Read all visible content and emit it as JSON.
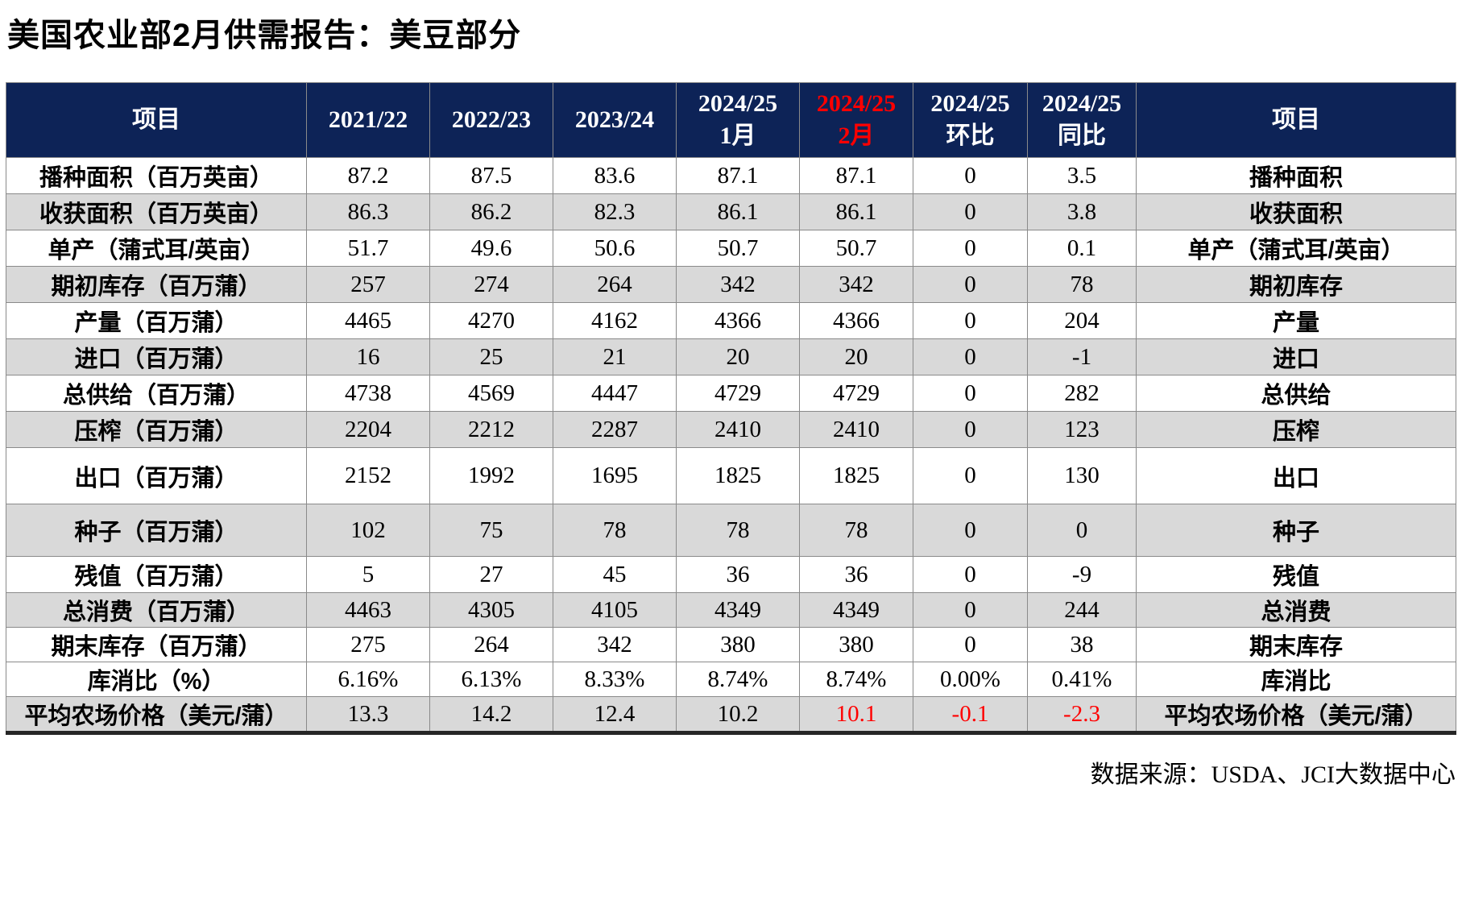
{
  "title": "美国农业部2月供需报告：美豆部分",
  "source_note": "数据来源：USDA、JCI大数据中心",
  "colors": {
    "header_bg": "#0D2357",
    "header_text": "#FFFFFF",
    "highlight_red": "#FF0000",
    "row_alt_bg": "#D9D9D9",
    "grid": "#8A8A8A"
  },
  "chart_data": {
    "type": "table",
    "title": "美国农业部2月供需报告：美豆部分",
    "source": "数据来源：USDA、JCI大数据中心",
    "columns": [
      {
        "label": "项目",
        "red": false
      },
      {
        "label": "2021/22",
        "red": false
      },
      {
        "label": "2022/23",
        "red": false
      },
      {
        "label": "2023/24",
        "red": false
      },
      {
        "label": "2024/25\n1月",
        "red": false
      },
      {
        "label": "2024/25\n2月",
        "red": true
      },
      {
        "label": "2024/25\n环比",
        "red": false
      },
      {
        "label": "2024/25\n同比",
        "red": false
      },
      {
        "label": "项目",
        "red": false
      }
    ],
    "rows": [
      {
        "item": "播种面积（百万英亩）",
        "values": [
          "87.2",
          "87.5",
          "83.6",
          "87.1",
          "87.1",
          "0",
          "3.5"
        ],
        "item_right": "播种面积",
        "shaded": false,
        "height": "std",
        "red_value_indices": []
      },
      {
        "item": "收获面积（百万英亩）",
        "values": [
          "86.3",
          "86.2",
          "82.3",
          "86.1",
          "86.1",
          "0",
          "3.8"
        ],
        "item_right": "收获面积",
        "shaded": true,
        "height": "std",
        "red_value_indices": []
      },
      {
        "item": "单产（蒲式耳/英亩）",
        "values": [
          "51.7",
          "49.6",
          "50.6",
          "50.7",
          "50.7",
          "0",
          "0.1"
        ],
        "item_right": "单产（蒲式耳/英亩）",
        "shaded": false,
        "height": "std",
        "red_value_indices": []
      },
      {
        "item": "期初库存（百万蒲）",
        "values": [
          "257",
          "274",
          "264",
          "342",
          "342",
          "0",
          "78"
        ],
        "item_right": "期初库存",
        "shaded": true,
        "height": "std",
        "red_value_indices": []
      },
      {
        "item": "产量（百万蒲）",
        "values": [
          "4465",
          "4270",
          "4162",
          "4366",
          "4366",
          "0",
          "204"
        ],
        "item_right": "产量",
        "shaded": false,
        "height": "std",
        "red_value_indices": []
      },
      {
        "item": "进口（百万蒲）",
        "values": [
          "16",
          "25",
          "21",
          "20",
          "20",
          "0",
          "-1"
        ],
        "item_right": "进口",
        "shaded": true,
        "height": "std",
        "red_value_indices": []
      },
      {
        "item": "总供给（百万蒲）",
        "values": [
          "4738",
          "4569",
          "4447",
          "4729",
          "4729",
          "0",
          "282"
        ],
        "item_right": "总供给",
        "shaded": false,
        "height": "std",
        "red_value_indices": []
      },
      {
        "item": "压榨（百万蒲）",
        "values": [
          "2204",
          "2212",
          "2287",
          "2410",
          "2410",
          "0",
          "123"
        ],
        "item_right": "压榨",
        "shaded": true,
        "height": "std",
        "red_value_indices": []
      },
      {
        "item": "出口（百万蒲）",
        "values": [
          "2152",
          "1992",
          "1695",
          "1825",
          "1825",
          "0",
          "130"
        ],
        "item_right": "出口",
        "shaded": false,
        "height": "xl",
        "red_value_indices": []
      },
      {
        "item": "种子（百万蒲）",
        "values": [
          "102",
          "75",
          "78",
          "78",
          "78",
          "0",
          "0"
        ],
        "item_right": "种子",
        "shaded": true,
        "height": "lg",
        "red_value_indices": []
      },
      {
        "item": "残值（百万蒲）",
        "values": [
          "5",
          "27",
          "45",
          "36",
          "36",
          "0",
          "-9"
        ],
        "item_right": "残值",
        "shaded": false,
        "height": "std",
        "red_value_indices": []
      },
      {
        "item": "总消费（百万蒲）",
        "values": [
          "4463",
          "4305",
          "4105",
          "4349",
          "4349",
          "0",
          "244"
        ],
        "item_right": "总消费",
        "shaded": true,
        "height": "sm",
        "red_value_indices": []
      },
      {
        "item": "期末库存（百万蒲）",
        "values": [
          "275",
          "264",
          "342",
          "380",
          "380",
          "0",
          "38"
        ],
        "item_right": "期末库存",
        "shaded": false,
        "height": "sm",
        "red_value_indices": []
      },
      {
        "item": "库消比（%）",
        "values": [
          "6.16%",
          "6.13%",
          "8.33%",
          "8.74%",
          "8.74%",
          "0.00%",
          "0.41%"
        ],
        "item_right": "库消比",
        "shaded": false,
        "height": "sm",
        "red_value_indices": []
      },
      {
        "item": "平均农场价格（美元/蒲）",
        "values": [
          "13.3",
          "14.2",
          "12.4",
          "10.2",
          "10.1",
          "-0.1",
          "-2.3"
        ],
        "item_right": "平均农场价格（美元/蒲）",
        "shaded": true,
        "height": "sm",
        "red_value_indices": [
          4,
          5,
          6
        ]
      }
    ]
  }
}
